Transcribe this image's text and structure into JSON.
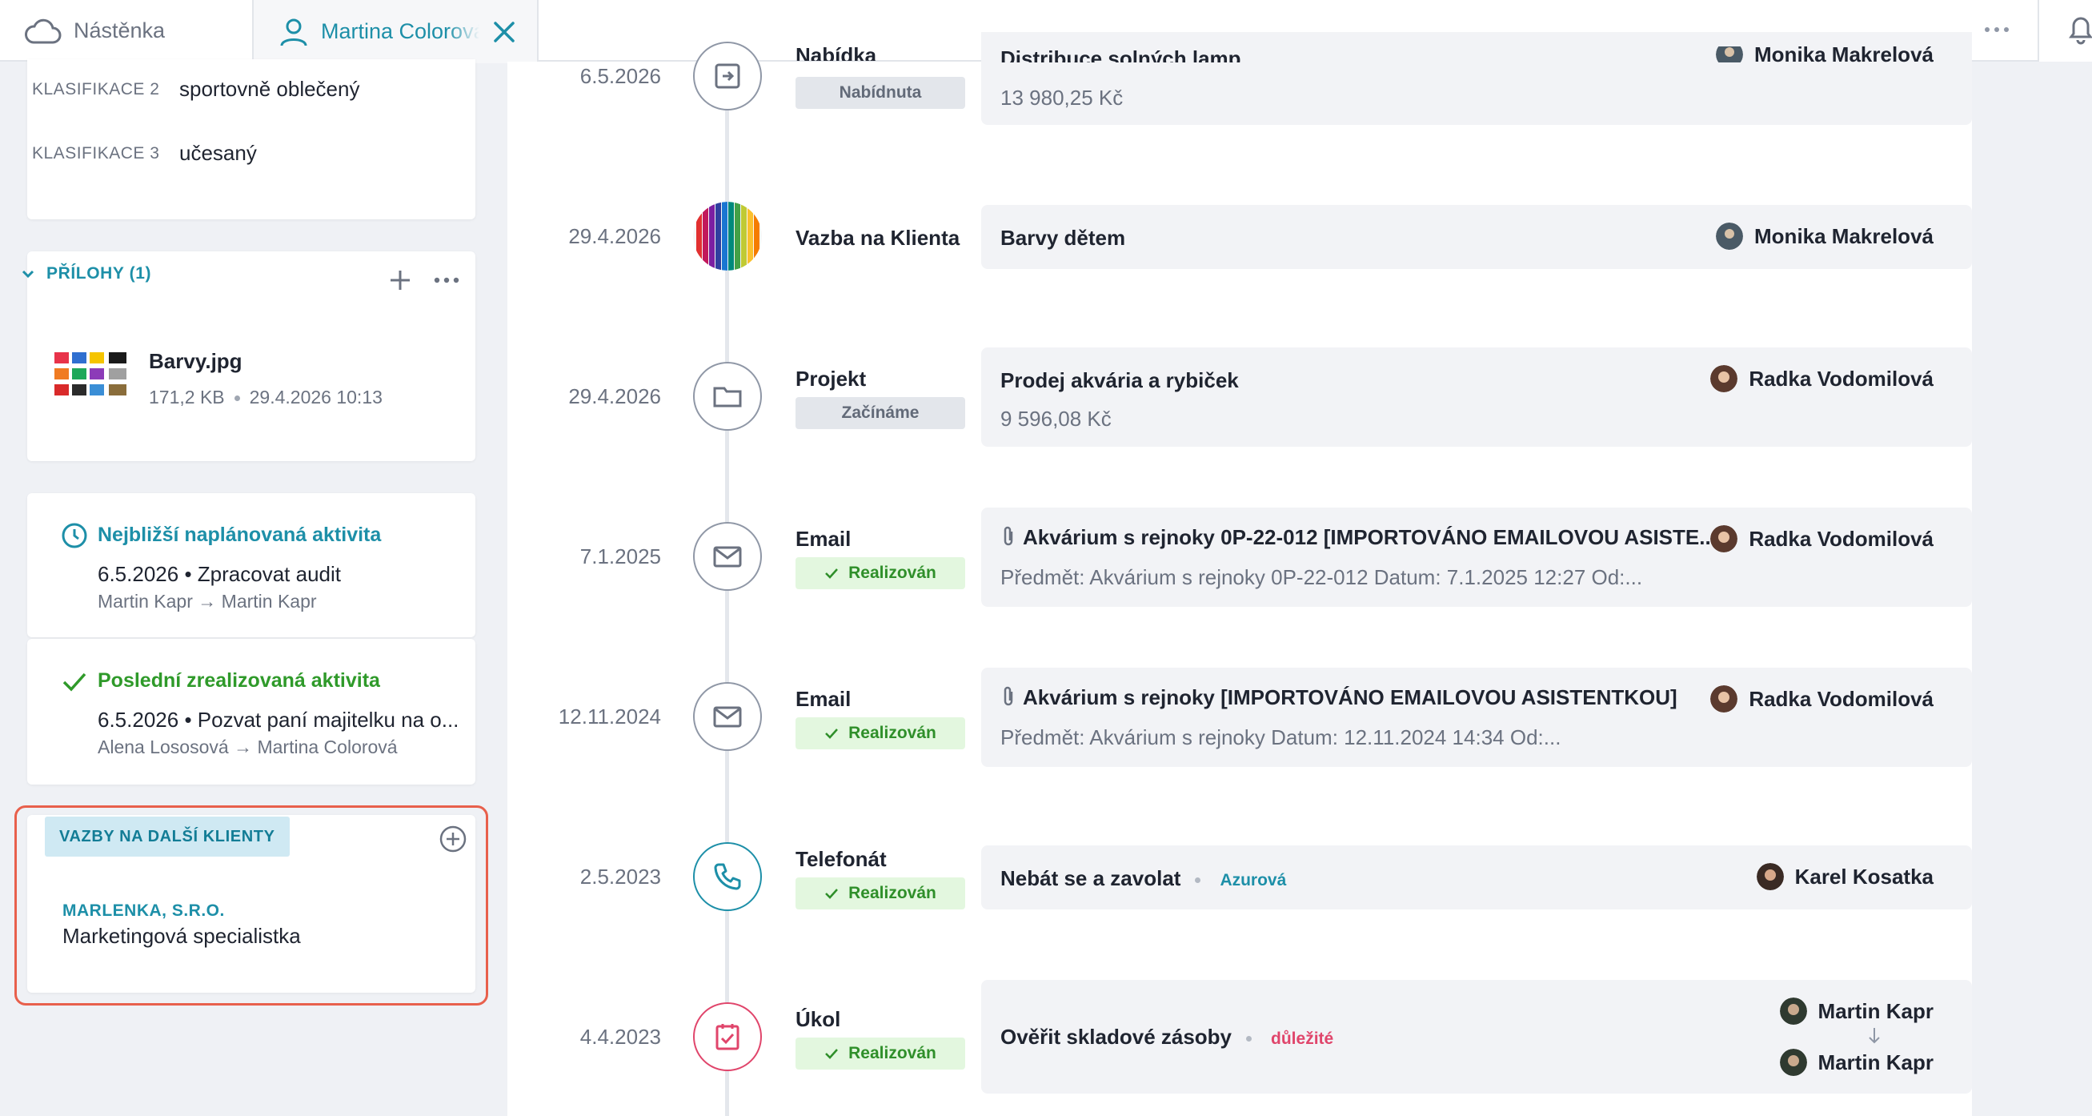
{
  "topbar": {
    "home_tab": "Nástěnka",
    "active_tab": "Martina Colorová",
    "icons": {
      "home": "cloud-icon",
      "user": "user-icon",
      "close": "close-icon",
      "more": "more-horizontal-icon",
      "bell": "bell-icon"
    }
  },
  "classifications": [
    {
      "key": "KLASIFIKACE 2",
      "value": "sportovně oblečený"
    },
    {
      "key": "KLASIFIKACE 3",
      "value": "učesaný"
    }
  ],
  "attachments": {
    "header": "PŘÍLOHY (1)",
    "files": [
      {
        "name": "Barvy.jpg",
        "size": "171,2 KB",
        "date": "29.4.2026 10:13"
      }
    ]
  },
  "planned_activity": {
    "title": "Nejbližší naplánovaná aktivita",
    "date": "6.5.2026",
    "text": "Zpracovat audit",
    "from": "Martin Kapr",
    "to": "Martin Kapr"
  },
  "last_activity": {
    "title": "Poslední zrealizovaná aktivita",
    "date": "6.5.2026",
    "text": "Pozvat paní majitelku na o...",
    "from": "Alena Lososová",
    "to": "Martina Colorová"
  },
  "relations": {
    "header": "VAZBY NA DALŠÍ KLIENTY",
    "items": [
      {
        "company": "MARLENKA, S.R.O.",
        "role": "Marketingová specialistka"
      }
    ]
  },
  "timeline": [
    {
      "date": "6.5.2026",
      "type": "Nabídka",
      "status": "Nabídnuta",
      "title": "Distribuce solných lamp",
      "sub": "13 980,25 Kč",
      "person": "Monika Makrelová",
      "icon": "offer-icon"
    },
    {
      "date": "29.4.2026",
      "type": "Vazba na Klienta",
      "title": "Barvy dětem",
      "person": "Monika Makrelová",
      "icon": "pencils-image-icon"
    },
    {
      "date": "29.4.2026",
      "type": "Projekt",
      "status": "Začínáme",
      "title": "Prodej akvária a rybiček",
      "sub": "9 596,08 Kč",
      "person": "Radka Vodomilová",
      "icon": "folder-icon"
    },
    {
      "date": "7.1.2025",
      "type": "Email",
      "status": "Realizován",
      "title": "Akvárium s rejnoky 0P-22-012 [IMPORTOVÁNO EMAILOVOU ASISTE...",
      "sub": "Předmět: Akvárium s rejnoky 0P-22-012 Datum: 7.1.2025 12:27 Od:...",
      "person": "Radka Vodomilová",
      "icon": "mail-icon"
    },
    {
      "date": "12.11.2024",
      "type": "Email",
      "status": "Realizován",
      "title": "Akvárium s rejnoky [IMPORTOVÁNO EMAILOVOU ASISTENTKOU]",
      "sub": "Předmět: Akvárium s rejnoky Datum: 12.11.2024 14:34 Od:...",
      "person": "Radka Vodomilová",
      "icon": "mail-icon"
    },
    {
      "date": "2.5.2023",
      "type": "Telefonát",
      "status": "Realizován",
      "title": "Nebát se a zavolat",
      "tag": "Azurová",
      "tag_color": "#1d8fa8",
      "person": "Karel Kosatka",
      "icon": "phone-icon"
    },
    {
      "date": "4.4.2023",
      "type": "Úkol",
      "status": "Realizován",
      "title": "Ověřit skladové zásoby",
      "tag": "důležité",
      "tag_color": "#e0456b",
      "person": "Martin Kapr",
      "person2": "Martin Kapr",
      "icon": "task-icon"
    }
  ]
}
